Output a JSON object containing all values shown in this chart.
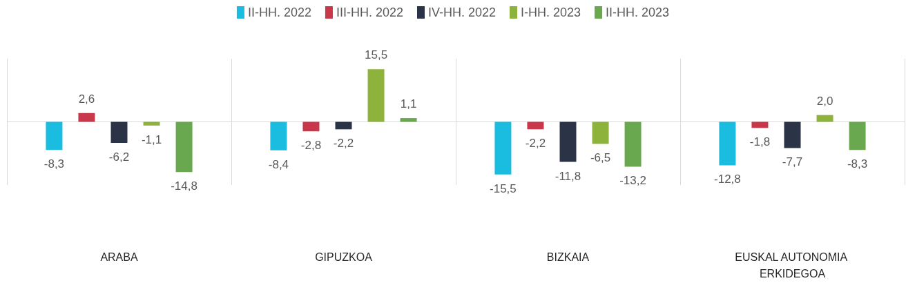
{
  "chart_data": {
    "type": "bar",
    "categories": [
      "ARABA",
      "GIPUZKOA",
      "BIZKAIA",
      "EUSKAL AUTONOMIA ERKIDEGOA"
    ],
    "series": [
      {
        "name": "II-HH. 2022",
        "color": "#1abde0",
        "values": [
          -8.3,
          -8.4,
          -15.5,
          -12.8
        ],
        "value_labels": [
          "-8,3",
          "-8,4",
          "-15,5",
          "-12,8"
        ]
      },
      {
        "name": "III-HH. 2022",
        "color": "#c8374a",
        "values": [
          2.6,
          -2.8,
          -2.2,
          -1.8
        ],
        "value_labels": [
          "2,6",
          "-2,8",
          "-2,2",
          "-1,8"
        ]
      },
      {
        "name": "IV-HH. 2022",
        "color": "#2b3447",
        "values": [
          -6.2,
          -2.2,
          -11.8,
          -7.7
        ],
        "value_labels": [
          "-6,2",
          "-2,2",
          "-11,8",
          "-7,7"
        ]
      },
      {
        "name": "I-HH. 2023",
        "color": "#8db33c",
        "values": [
          -1.1,
          15.5,
          -6.5,
          2.0
        ],
        "value_labels": [
          "-1,1",
          "15,5",
          "-6,5",
          "2,0"
        ]
      },
      {
        "name": "II-HH. 2023",
        "color": "#6aa84f",
        "values": [
          -14.8,
          1.1,
          -13.2,
          -8.3
        ],
        "value_labels": [
          "-14,8",
          "1,1",
          "-13,2",
          "-8,3"
        ]
      }
    ],
    "grid": "x",
    "legend": "top"
  }
}
